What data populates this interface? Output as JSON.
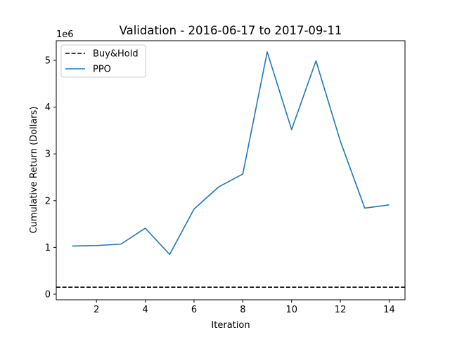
{
  "chart_data": {
    "type": "line",
    "title": "Validation - 2016-06-17 to 2017-09-11",
    "xlabel": "Iteration",
    "ylabel": "Cumulative Return (Dollars)",
    "y_offset_label": "1e6",
    "xlim": [
      0.35,
      14.65
    ],
    "ylim": [
      -0.12,
      5.42
    ],
    "y_scale_factor": 1000000,
    "xticks": [
      2,
      4,
      6,
      8,
      10,
      12,
      14
    ],
    "yticks": [
      0,
      1,
      2,
      3,
      4,
      5
    ],
    "grid": false,
    "legend_position": "top-left",
    "series": [
      {
        "name": "Buy&Hold",
        "style": "dashed",
        "color": "#000000",
        "x": [
          0.35,
          14.65
        ],
        "y": [
          0.15,
          0.15
        ]
      },
      {
        "name": "PPO",
        "style": "solid",
        "color": "#1f77b4",
        "x": [
          1,
          2,
          3,
          4,
          5,
          6,
          7,
          8,
          9,
          10,
          11,
          12,
          13,
          14
        ],
        "y": [
          1.03,
          1.04,
          1.07,
          1.41,
          0.85,
          1.82,
          2.29,
          2.57,
          5.18,
          3.52,
          4.99,
          3.27,
          1.84,
          1.91
        ]
      }
    ]
  }
}
